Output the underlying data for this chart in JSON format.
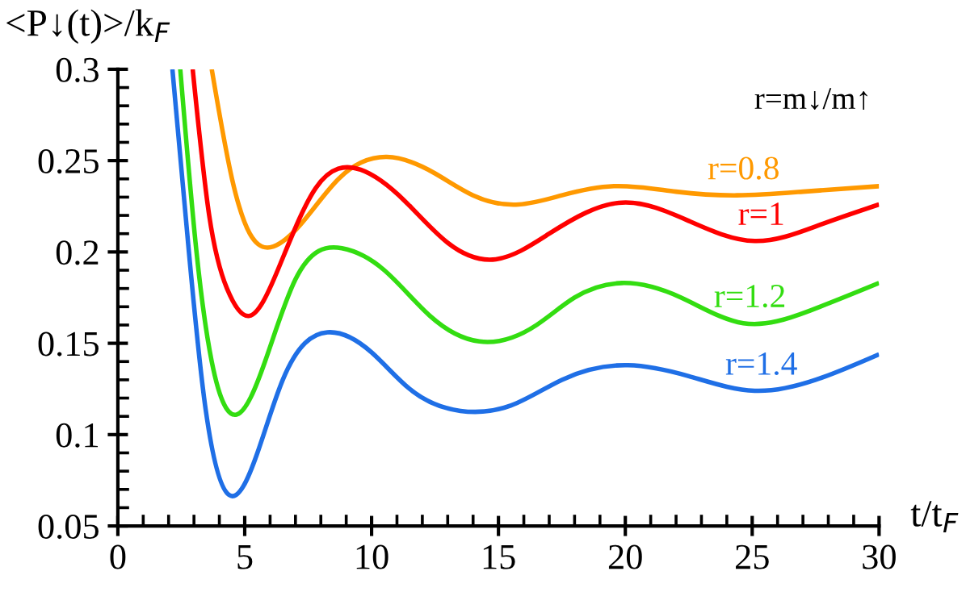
{
  "chart_data": {
    "type": "line",
    "xlabel": "t/t$_{F}$",
    "ylabel": "<P↓(t)>/k$_{F}$",
    "legend_title": "r=m↓/m↑",
    "xlim": [
      0,
      30
    ],
    "ylim": [
      0.05,
      0.3
    ],
    "xticks": [
      0,
      {
        "value": 1,
        "label": null
      },
      {
        "value": 2,
        "label": null
      },
      {
        "value": 3,
        "label": null
      },
      {
        "value": 4,
        "label": null
      },
      5,
      {
        "value": 6,
        "label": null
      },
      {
        "value": 7,
        "label": null
      },
      {
        "value": 8,
        "label": null
      },
      {
        "value": 9,
        "label": null
      },
      10,
      {
        "value": 11,
        "label": null
      },
      {
        "value": 12,
        "label": null
      },
      {
        "value": 13,
        "label": null
      },
      {
        "value": 14,
        "label": null
      },
      15,
      {
        "value": 16,
        "label": null
      },
      {
        "value": 17,
        "label": null
      },
      {
        "value": 18,
        "label": null
      },
      {
        "value": 19,
        "label": null
      },
      20,
      {
        "value": 21,
        "label": null
      },
      {
        "value": 22,
        "label": null
      },
      {
        "value": 23,
        "label": null
      },
      {
        "value": 24,
        "label": null
      },
      25,
      {
        "value": 26,
        "label": null
      },
      {
        "value": 27,
        "label": null
      },
      {
        "value": 28,
        "label": null
      },
      {
        "value": 29,
        "label": null
      },
      30
    ],
    "yticks": [
      0.05,
      {
        "value": 0.06,
        "label": null
      },
      {
        "value": 0.07,
        "label": null
      },
      {
        "value": 0.08,
        "label": null
      },
      {
        "value": 0.09,
        "label": null
      },
      0.1,
      {
        "value": 0.11,
        "label": null
      },
      {
        "value": 0.12,
        "label": null
      },
      {
        "value": 0.13,
        "label": null
      },
      {
        "value": 0.14,
        "label": null
      },
      0.15,
      {
        "value": 0.16,
        "label": null
      },
      {
        "value": 0.17,
        "label": null
      },
      {
        "value": 0.18,
        "label": null
      },
      {
        "value": 0.19,
        "label": null
      },
      0.2,
      {
        "value": 0.21,
        "label": null
      },
      {
        "value": 0.22,
        "label": null
      },
      {
        "value": 0.23,
        "label": null
      },
      {
        "value": 0.24,
        "label": null
      },
      0.25,
      {
        "value": 0.26,
        "label": null
      },
      {
        "value": 0.27,
        "label": null
      },
      {
        "value": 0.28,
        "label": null
      },
      {
        "value": 0.29,
        "label": null
      },
      0.3
    ],
    "grid": false,
    "legend": false,
    "marker": "none",
    "line_style": "solid",
    "series": [
      {
        "name": "r=0.8",
        "color": "#ff9900",
        "x": [
          3.7,
          4.5,
          5.2,
          6.13,
          7.2,
          8.7,
          10.6,
          12.5,
          14,
          15.8,
          17.5,
          19.55,
          22,
          24.4,
          27,
          30
        ],
        "values": [
          0.3,
          0.24,
          0.21,
          0.203,
          0.215,
          0.24,
          0.252,
          0.243,
          0.231,
          0.226,
          0.231,
          0.236,
          0.233,
          0.231,
          0.233,
          0.236
        ]
      },
      {
        "name": "r=1",
        "color": "#ff0000",
        "x": [
          2.95,
          3.6,
          4.3,
          5.18,
          6.3,
          7.8,
          9.57,
          11.3,
          13,
          14.9,
          17,
          19.87,
          22.5,
          25.1,
          27.7,
          30
        ],
        "values": [
          0.3,
          0.22,
          0.18,
          0.165,
          0.19,
          0.235,
          0.245,
          0.228,
          0.205,
          0.196,
          0.21,
          0.227,
          0.217,
          0.206,
          0.215,
          0.226
        ]
      },
      {
        "name": "r=1.2",
        "color": "#33dd11",
        "x": [
          2.46,
          3.1,
          3.7,
          4.69,
          5.8,
          7,
          8.83,
          10.5,
          12.3,
          14.25,
          16.5,
          18,
          19.87,
          22.2,
          24.65,
          27.3,
          30
        ],
        "values": [
          0.3,
          0.2,
          0.14,
          0.111,
          0.14,
          0.185,
          0.202,
          0.19,
          0.165,
          0.151,
          0.16,
          0.175,
          0.183,
          0.175,
          0.161,
          0.168,
          0.183
        ]
      },
      {
        "name": "r=1.4",
        "color": "#1f6fe6",
        "x": [
          2.15,
          2.8,
          3.4,
          4.38,
          5.5,
          6.5,
          8.26,
          10,
          11.5,
          13.5,
          15.5,
          17.5,
          20.1,
          22.5,
          25.1,
          27.5,
          30
        ],
        "values": [
          0.3,
          0.2,
          0.12,
          0.067,
          0.09,
          0.13,
          0.156,
          0.145,
          0.125,
          0.113,
          0.116,
          0.13,
          0.138,
          0.132,
          0.124,
          0.13,
          0.144
        ]
      }
    ]
  }
}
